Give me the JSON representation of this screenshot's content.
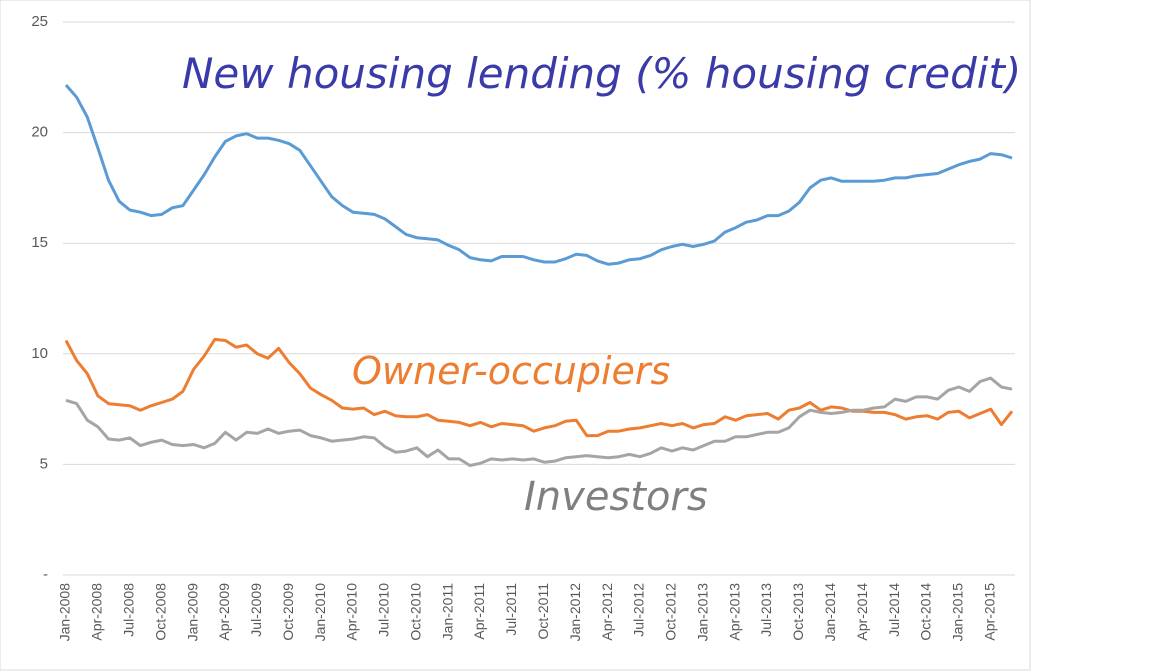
{
  "chart_data": {
    "type": "line",
    "title": "New housing lending (% housing credit)",
    "categories": [
      "Jan-2008",
      null,
      null,
      "Apr-2008",
      null,
      null,
      "Jul-2008",
      null,
      null,
      "Oct-2008",
      null,
      null,
      "Jan-2009",
      null,
      null,
      "Apr-2009",
      null,
      null,
      "Jul-2009",
      null,
      null,
      "Oct-2009",
      null,
      null,
      "Jan-2010",
      null,
      null,
      "Apr-2010",
      null,
      null,
      "Jul-2010",
      null,
      null,
      "Oct-2010",
      null,
      null,
      "Jan-2011",
      null,
      null,
      "Apr-2011",
      null,
      null,
      "Jul-2011",
      null,
      null,
      "Oct-2011",
      null,
      null,
      "Jan-2012",
      null,
      null,
      "Apr-2012",
      null,
      null,
      "Jul-2012",
      null,
      null,
      "Oct-2012",
      null,
      null,
      "Jan-2013",
      null,
      null,
      "Apr-2013",
      null,
      null,
      "Jul-2013",
      null,
      null,
      "Oct-2013",
      null,
      null,
      "Jan-2014",
      null,
      null,
      "Apr-2014",
      null,
      null,
      "Jul-2014",
      null,
      null,
      "Oct-2014",
      null,
      null,
      "Jan-2015",
      null,
      null,
      "Apr-2015",
      null,
      null
    ],
    "series": [
      {
        "color": "#5b9bd5",
        "values": [
          22.15,
          21.6,
          20.7,
          19.3,
          17.85,
          16.9,
          16.5,
          16.4,
          16.25,
          16.3,
          16.6,
          16.7,
          17.4,
          18.1,
          18.9,
          19.6,
          19.85,
          19.95,
          19.75,
          19.75,
          19.65,
          19.5,
          19.2,
          18.5,
          17.8,
          17.1,
          16.7,
          16.4,
          16.35,
          16.3,
          16.1,
          15.75,
          15.4,
          15.25,
          15.2,
          15.15,
          14.9,
          14.7,
          14.35,
          14.25,
          14.2,
          14.4,
          14.4,
          14.4,
          14.25,
          14.15,
          14.15,
          14.3,
          14.5,
          14.45,
          14.2,
          14.05,
          14.1,
          14.25,
          14.3,
          14.45,
          14.7,
          14.85,
          14.95,
          14.85,
          14.95,
          15.1,
          15.5,
          15.7,
          15.95,
          16.05,
          16.25,
          16.25,
          16.45,
          16.85,
          17.5,
          17.85,
          17.95,
          17.8,
          17.8,
          17.8,
          17.8,
          17.85,
          17.95,
          17.95,
          18.05,
          18.1,
          18.15,
          18.35,
          18.55,
          18.7,
          18.8,
          19.05,
          19.0,
          18.85
        ]
      },
      {
        "name": "Owner-occupiers",
        "color": "#ed7d31",
        "values": [
          10.6,
          9.7,
          9.1,
          8.1,
          7.75,
          7.7,
          7.65,
          7.45,
          7.65,
          7.8,
          7.95,
          8.3,
          9.3,
          9.9,
          10.65,
          10.6,
          10.3,
          10.4,
          10.0,
          9.8,
          10.25,
          9.6,
          9.1,
          8.45,
          8.15,
          7.9,
          7.55,
          7.5,
          7.55,
          7.25,
          7.4,
          7.2,
          7.15,
          7.15,
          7.25,
          7.0,
          6.95,
          6.9,
          6.75,
          6.9,
          6.7,
          6.85,
          6.8,
          6.75,
          6.5,
          6.65,
          6.75,
          6.95,
          7.0,
          6.3,
          6.3,
          6.5,
          6.5,
          6.6,
          6.65,
          6.75,
          6.85,
          6.75,
          6.85,
          6.65,
          6.8,
          6.85,
          7.15,
          7.0,
          7.2,
          7.25,
          7.3,
          7.05,
          7.45,
          7.55,
          7.8,
          7.45,
          7.6,
          7.55,
          7.4,
          7.4,
          7.35,
          7.35,
          7.25,
          7.05,
          7.15,
          7.2,
          7.05,
          7.35,
          7.4,
          7.1,
          7.3,
          7.5,
          6.8,
          7.4
        ]
      },
      {
        "name": "Investors",
        "color": "#a5a5a5",
        "values": [
          7.9,
          7.75,
          7.0,
          6.7,
          6.15,
          6.1,
          6.2,
          5.85,
          6.0,
          6.1,
          5.9,
          5.85,
          5.9,
          5.75,
          5.95,
          6.45,
          6.1,
          6.45,
          6.4,
          6.6,
          6.4,
          6.5,
          6.55,
          6.3,
          6.2,
          6.05,
          6.1,
          6.15,
          6.25,
          6.2,
          5.8,
          5.55,
          5.6,
          5.75,
          5.35,
          5.65,
          5.25,
          5.25,
          4.95,
          5.05,
          5.25,
          5.2,
          5.25,
          5.2,
          5.25,
          5.1,
          5.15,
          5.3,
          5.35,
          5.4,
          5.35,
          5.3,
          5.35,
          5.45,
          5.35,
          5.5,
          5.75,
          5.6,
          5.75,
          5.65,
          5.85,
          6.05,
          6.05,
          6.25,
          6.25,
          6.35,
          6.45,
          6.45,
          6.65,
          7.15,
          7.45,
          7.35,
          7.3,
          7.35,
          7.45,
          7.45,
          7.55,
          7.6,
          7.95,
          7.85,
          8.05,
          8.05,
          7.95,
          8.35,
          8.5,
          8.3,
          8.75,
          8.9,
          8.5,
          8.4
        ]
      }
    ],
    "ylim": [
      0,
      25
    ],
    "yticks": [
      {
        "value": 0,
        "label": "-"
      },
      5,
      10,
      15,
      20,
      25
    ],
    "grid": true
  }
}
